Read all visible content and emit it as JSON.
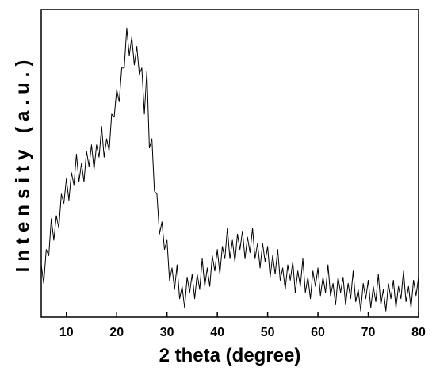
{
  "chart_data": {
    "type": "line",
    "xlabel": "2 theta (degree)",
    "ylabel": "Intensity (a.u.)",
    "xlim": [
      5,
      80
    ],
    "ylim": [
      0,
      100
    ],
    "xticks": [
      10,
      20,
      30,
      40,
      50,
      60,
      70,
      80
    ],
    "color": "#000000",
    "x": [
      5,
      5.5,
      6,
      6.5,
      7,
      7.5,
      8,
      8.5,
      9,
      9.5,
      10,
      10.5,
      11,
      11.5,
      12,
      12.5,
      13,
      13.5,
      14,
      14.5,
      15,
      15.5,
      16,
      16.5,
      17,
      17.5,
      18,
      18.5,
      19,
      19.5,
      20,
      20.5,
      21,
      21.5,
      22,
      22.5,
      23,
      23.5,
      24,
      24.5,
      25,
      25.5,
      26,
      26.5,
      27,
      27.5,
      28,
      28.5,
      29,
      29.5,
      30,
      30.5,
      31,
      31.5,
      32,
      32.5,
      33,
      33.5,
      34,
      34.5,
      35,
      35.5,
      36,
      36.5,
      37,
      37.5,
      38,
      38.5,
      39,
      39.5,
      40,
      40.5,
      41,
      41.5,
      42,
      42.5,
      43,
      43.5,
      44,
      44.5,
      45,
      45.5,
      46,
      46.5,
      47,
      47.5,
      48,
      48.5,
      49,
      49.5,
      50,
      50.5,
      51,
      51.5,
      52,
      52.5,
      53,
      53.5,
      54,
      54.5,
      55,
      55.5,
      56,
      56.5,
      57,
      57.5,
      58,
      58.5,
      59,
      59.5,
      60,
      60.5,
      61,
      61.5,
      62,
      62.5,
      63,
      63.5,
      64,
      64.5,
      65,
      65.5,
      66,
      66.5,
      67,
      67.5,
      68,
      68.5,
      69,
      69.5,
      70,
      70.5,
      71,
      71.5,
      72,
      72.5,
      73,
      73.5,
      74,
      74.5,
      75,
      75.5,
      76,
      76.5,
      77,
      77.5,
      78,
      78.5,
      79,
      79.5,
      80
    ],
    "values": [
      17,
      11,
      22,
      20,
      32,
      25,
      33,
      29,
      40,
      37,
      45,
      38,
      47,
      43,
      53,
      44,
      50,
      44,
      54,
      49,
      56,
      48,
      56,
      52,
      62,
      52,
      58,
      54,
      66,
      65,
      74,
      70,
      81,
      81,
      94,
      85,
      91,
      82,
      88,
      79,
      81,
      66,
      80,
      55,
      58,
      41,
      40,
      27,
      31,
      22,
      25,
      12,
      16,
      9,
      17,
      6,
      10,
      3,
      13,
      8,
      14,
      6,
      14,
      9,
      19,
      10,
      16,
      10,
      20,
      15,
      22,
      14,
      23,
      19,
      29,
      19,
      25,
      18,
      27,
      22,
      28,
      19,
      26,
      21,
      29,
      19,
      24,
      16,
      24,
      18,
      23,
      13,
      20,
      14,
      22,
      12,
      16,
      9,
      17,
      12,
      18,
      8,
      15,
      10,
      19,
      8,
      13,
      6,
      15,
      10,
      16,
      7,
      13,
      8,
      17,
      7,
      11,
      4,
      13,
      8,
      13,
      4,
      11,
      6,
      15,
      5,
      9,
      2,
      11,
      6,
      12,
      3,
      10,
      5,
      14,
      4,
      9,
      2,
      11,
      6,
      12,
      3,
      10,
      6,
      15,
      5,
      10,
      3,
      12,
      7,
      13
    ]
  }
}
